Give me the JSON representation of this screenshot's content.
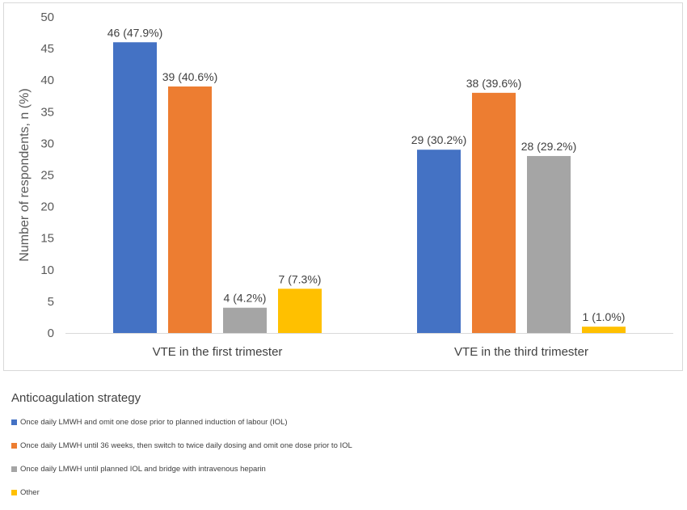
{
  "chart_data": {
    "type": "bar",
    "ylabel": "Number of respondents, n (%)",
    "ylim": [
      0,
      50
    ],
    "yticks": [
      0,
      5,
      10,
      15,
      20,
      25,
      30,
      35,
      40,
      45,
      50
    ],
    "categories": [
      "VTE in the first trimester",
      "VTE in the third trimester"
    ],
    "series": [
      {
        "name": "Once daily LMWH and omit one dose prior to planned induction of labour (IOL)",
        "color": "#4472c4",
        "values": [
          46,
          29
        ],
        "labels": [
          "46 (47.9%)",
          "29 (30.2%)"
        ]
      },
      {
        "name": "Once daily LMWH until 36 weeks, then switch to twice daily dosing and omit one dose prior to IOL",
        "color": "#ed7d31",
        "values": [
          39,
          38
        ],
        "labels": [
          "39 (40.6%)",
          "38 (39.6%)"
        ]
      },
      {
        "name": "Once daily LMWH until planned IOL and bridge with intravenous heparin",
        "color": "#a5a5a5",
        "values": [
          4,
          28
        ],
        "labels": [
          "4 (4.2%)",
          "28 (29.2%)"
        ]
      },
      {
        "name": "Other",
        "color": "#ffc000",
        "values": [
          7,
          1
        ],
        "labels": [
          "7 (7.3%)",
          "1 (1.0%)"
        ]
      }
    ],
    "grid": false,
    "legend_position": "bottom",
    "legend_title": "Anticoagulation strategy"
  }
}
